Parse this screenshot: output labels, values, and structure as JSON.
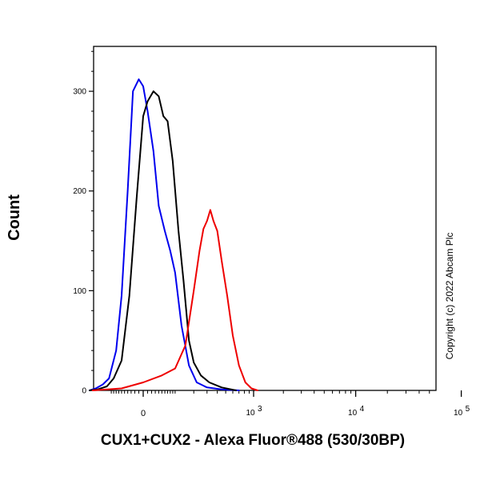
{
  "chart_data": {
    "type": "line",
    "title": "",
    "xlabel": "CUX1+CUX2 - Alexa Fluor®488 (530/30BP)",
    "ylabel": "Count",
    "ylim": [
      0,
      345
    ],
    "xscale": "biexponential",
    "y_ticks": [
      {
        "value": 0,
        "label": "0"
      },
      {
        "value": 100,
        "label": "100"
      },
      {
        "value": 200,
        "label": "200"
      },
      {
        "value": 300,
        "label": "300"
      }
    ],
    "x_ticks": [
      {
        "value": 0,
        "base": "0",
        "exp": ""
      },
      {
        "value": 1000,
        "base": "10",
        "exp": "3"
      },
      {
        "value": 10000,
        "base": "10",
        "exp": "4"
      },
      {
        "value": 100000,
        "base": "10",
        "exp": "5"
      }
    ],
    "grid": false,
    "legend": "none",
    "annotation": "Copyright (c) 2022 Abcam Plc",
    "series": [
      {
        "color": "#0000ee",
        "x": [
          -220,
          -180,
          -140,
          -110,
          -80,
          -60,
          -40,
          -25,
          -10,
          0,
          10,
          25,
          40,
          60,
          80,
          100,
          130,
          170,
          220,
          300,
          450,
          700
        ],
        "y": [
          0,
          2,
          6,
          12,
          40,
          95,
          200,
          300,
          312,
          305,
          280,
          240,
          185,
          160,
          140,
          118,
          65,
          25,
          8,
          3,
          1,
          0
        ]
      },
      {
        "color": "#000000",
        "x": [
          -220,
          -170,
          -120,
          -90,
          -60,
          -35,
          -15,
          0,
          10,
          25,
          40,
          55,
          70,
          90,
          115,
          140,
          170,
          200,
          250,
          320,
          450,
          650
        ],
        "y": [
          0,
          1,
          4,
          12,
          30,
          95,
          195,
          275,
          290,
          300,
          295,
          275,
          270,
          230,
          160,
          110,
          50,
          28,
          15,
          8,
          3,
          0
        ]
      },
      {
        "color": "#ee0000",
        "x": [
          -200,
          -60,
          0,
          50,
          100,
          150,
          200,
          240,
          270,
          300,
          330,
          360,
          400,
          450,
          520,
          600,
          700,
          820,
          950,
          1100
        ],
        "y": [
          0,
          2,
          8,
          15,
          22,
          45,
          100,
          140,
          162,
          170,
          181,
          170,
          160,
          130,
          95,
          55,
          25,
          8,
          2,
          0
        ]
      }
    ]
  }
}
